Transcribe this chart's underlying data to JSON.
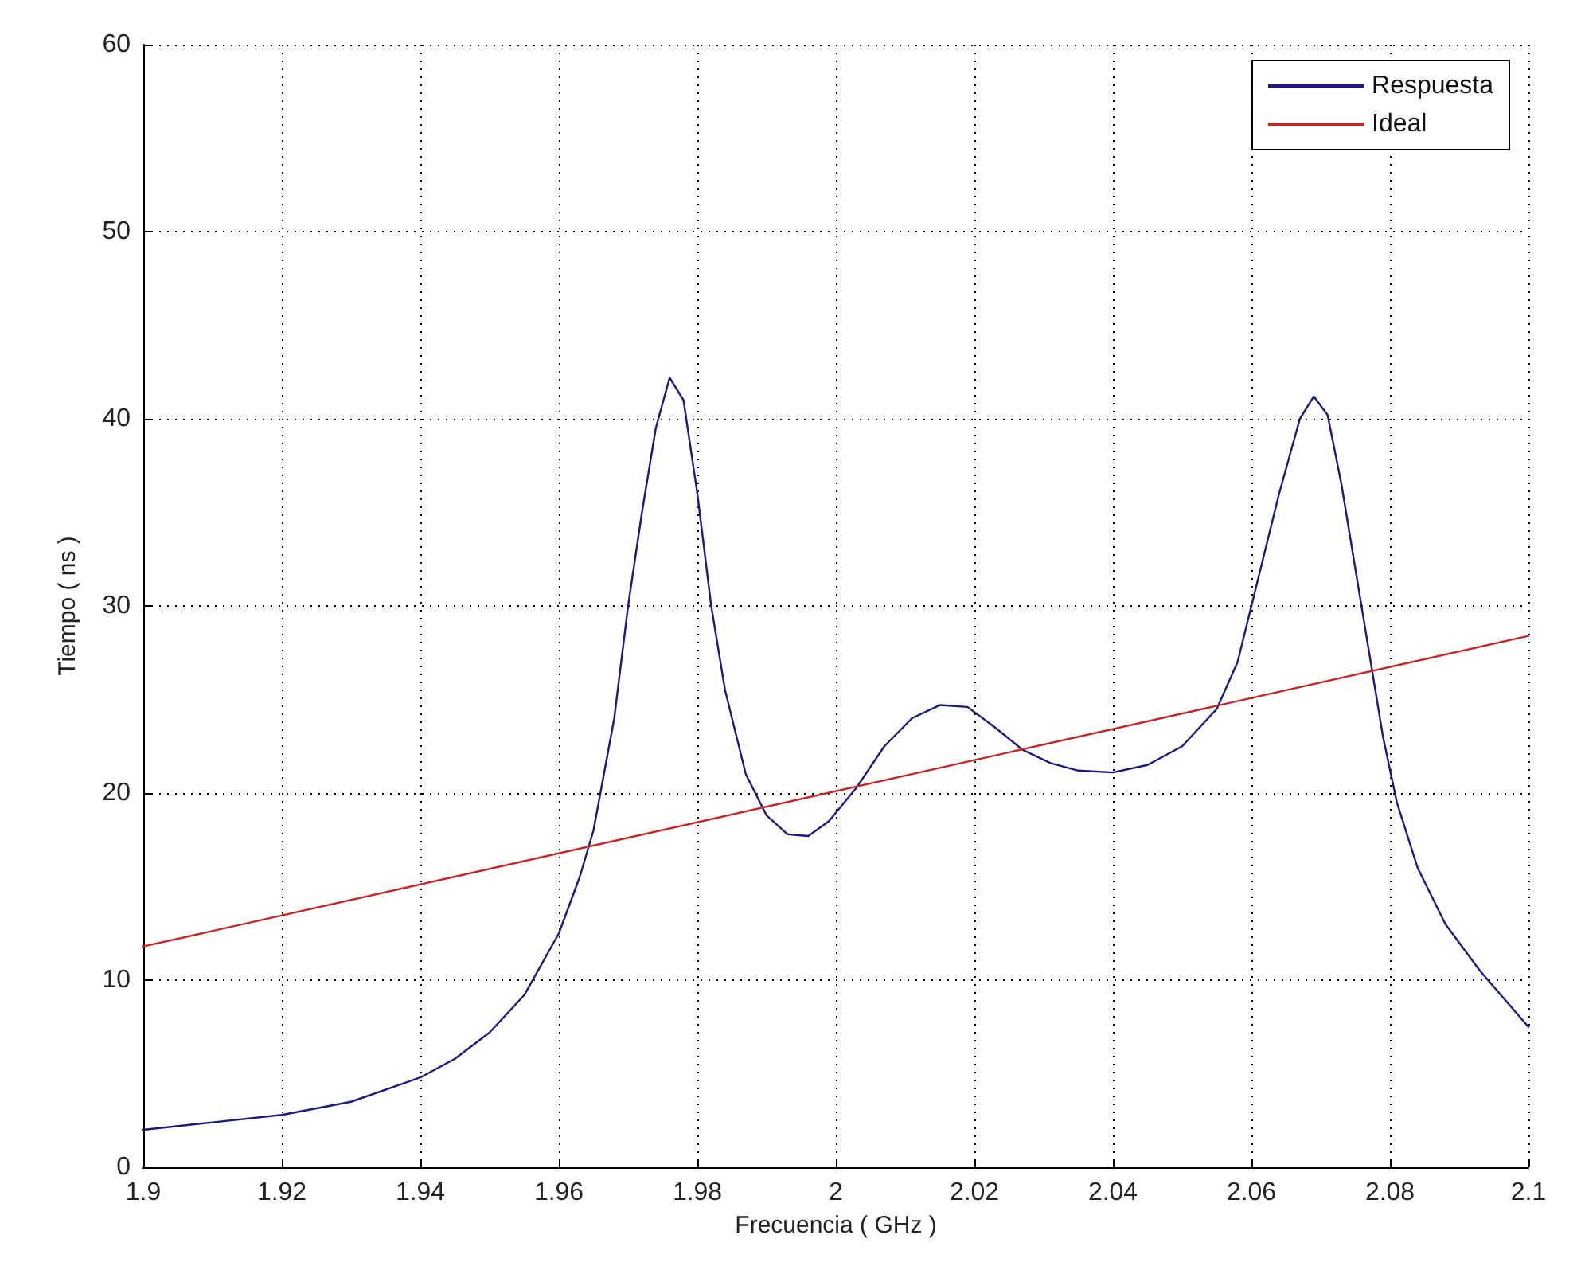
{
  "chart_data": {
    "type": "line",
    "xlabel": "Frecuencia ( GHz )",
    "ylabel": "Tiempo ( ns )",
    "xlim": [
      1.9,
      2.1
    ],
    "xticks": [
      1.9,
      1.92,
      1.94,
      1.96,
      1.98,
      2,
      2.02,
      2.04,
      2.06,
      2.08,
      2.1
    ],
    "ylim": [
      0,
      60
    ],
    "yticks": [
      0,
      10,
      20,
      30,
      40,
      50,
      60
    ],
    "grid": true,
    "legend": "top right",
    "marker": "none",
    "line_style": "solid",
    "series": [
      {
        "name": "Respuesta",
        "color": "#1a1a80",
        "x": [
          1.9,
          1.91,
          1.92,
          1.93,
          1.94,
          1.945,
          1.95,
          1.955,
          1.96,
          1.963,
          1.965,
          1.968,
          1.97,
          1.972,
          1.974,
          1.976,
          1.978,
          1.98,
          1.982,
          1.984,
          1.987,
          1.99,
          1.993,
          1.996,
          1.999,
          2.003,
          2.007,
          2.011,
          2.015,
          2.019,
          2.023,
          2.027,
          2.031,
          2.035,
          2.04,
          2.045,
          2.05,
          2.055,
          2.058,
          2.061,
          2.064,
          2.067,
          2.069,
          2.071,
          2.073,
          2.075,
          2.077,
          2.079,
          2.081,
          2.084,
          2.088,
          2.093,
          2.1
        ],
        "values": [
          2.0,
          2.4,
          2.8,
          3.5,
          4.8,
          5.8,
          7.2,
          9.2,
          12.5,
          15.5,
          18,
          24,
          30,
          35,
          39.5,
          42.2,
          41,
          36,
          30,
          25.5,
          21,
          18.8,
          17.8,
          17.7,
          18.5,
          20.3,
          22.5,
          24,
          24.7,
          24.6,
          23.5,
          22.3,
          21.6,
          21.2,
          21.1,
          21.5,
          22.5,
          24.5,
          27,
          31.5,
          36,
          40,
          41.2,
          40.2,
          36.5,
          32,
          27.5,
          23,
          19.5,
          16,
          13,
          10.5,
          7.5
        ]
      },
      {
        "name": "Ideal",
        "color": "#cc2222",
        "x": [
          1.9,
          2.1
        ],
        "values": [
          11.8,
          28.4
        ]
      }
    ]
  }
}
